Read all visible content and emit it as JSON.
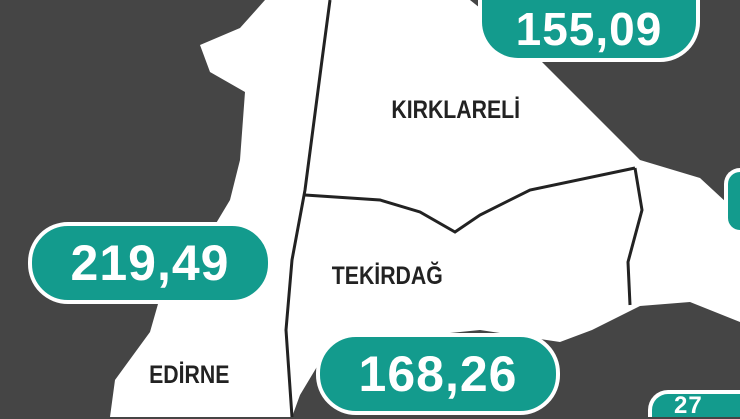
{
  "map": {
    "colors": {
      "sea": "#454545",
      "land": "#ffffff",
      "badge": "#139b8d",
      "border": "#222222"
    },
    "provinces": [
      {
        "name": "KIRKLARELİ",
        "value": "155,09"
      },
      {
        "name": "TEKİRDAĞ",
        "value": "168,26"
      },
      {
        "name": "EDİRNE",
        "value": "219,49"
      }
    ],
    "partial_values": [
      "27"
    ]
  }
}
